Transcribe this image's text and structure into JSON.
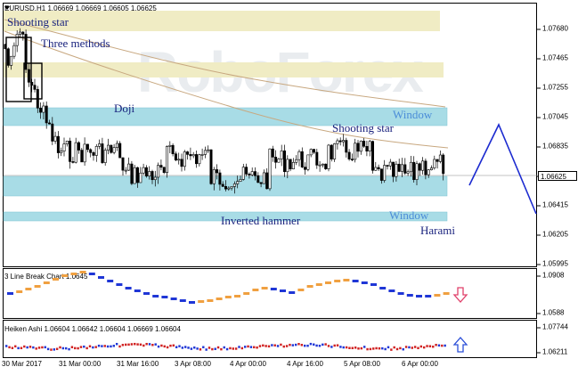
{
  "main_chart": {
    "header": "EURUSD,H1  1.06669 1.06669 1.06605 1.06625",
    "watermark": "RoboForex",
    "current_price": "1.06625",
    "price_ticks": [
      "1.07680",
      "1.07465",
      "1.07255",
      "1.07045",
      "1.06835",
      "1.06625",
      "1.06415",
      "1.06205",
      "1.05995"
    ],
    "annotations": {
      "shooting_star_1": "Shooting star",
      "three_methods": "Three methods",
      "doji": "Doji",
      "window_1": "Window",
      "shooting_star_2": "Shooting star",
      "inverted_hammer": "Inverted hammer",
      "window_2": "Window",
      "harami": "Harami"
    }
  },
  "line_break_chart": {
    "header": "3 Line Break Chart 1.0645",
    "price_ticks": [
      "1.0908",
      "1.0588"
    ],
    "signal": "down"
  },
  "heiken_ashi_chart": {
    "header": "Heiken Ashi 1.06604 1.06642 1.06604 1.06669 1.06604",
    "price_ticks": [
      "1.07744",
      "1.06211"
    ],
    "signal": "up"
  },
  "time_axis": [
    "30 Mar 2017",
    "31 Mar 00:00",
    "31 Mar 16:00",
    "3 Apr 08:00",
    "4 Apr 00:00",
    "4 Apr 16:00",
    "5 Apr 08:00",
    "6 Apr 00:00"
  ],
  "colors": {
    "bull": "#000000",
    "bear": "#000000",
    "zone": "#a8dce6",
    "resistance": "#f0ecc4",
    "ma": "#c8a880",
    "signal_line": "#1c2bd0",
    "lb_up": "#1f36d6",
    "lb_down": "#f0a040",
    "ha_bull": "#1f36d6",
    "ha_bear": "#d02020",
    "down_arrow": "#e0406a",
    "up_arrow": "#2b4fd8"
  }
}
